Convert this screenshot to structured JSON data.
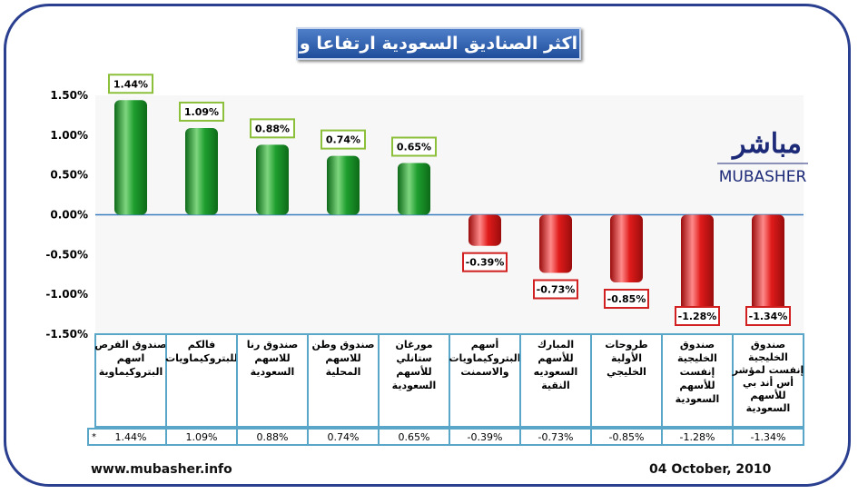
{
  "title": "اكثر الصناديق السعودية ارتفاعا و تراجعا",
  "logo": {
    "arabic": "مباشر",
    "latin": "MUBASHER"
  },
  "footer": {
    "website": "www.mubasher.info",
    "date": "04 October, 2010"
  },
  "chart_data": {
    "type": "bar",
    "title": "اكثر الصناديق السعودية ارتفاعا و تراجعا",
    "categories": [
      "صندوق الفرص اسهم البتروكيماوية",
      "فالكم للبتروكيماويات",
      "صندوق رنا للاسهم السعودية",
      "صندوق وطن للاسهم المحلية",
      "مورغان ستانلي للأسهم السعودية",
      "أسهم البتروكيماويات والاسمنت",
      "المبارك للأسهم السعوديه النقية",
      "طروحات الأولية الخليجي",
      "صندوق الخليجية إنفست للأسهم السعودية",
      "صندوق الخليجية إنفست لمؤشر أس أند بي للأسهم السعودية"
    ],
    "values": [
      1.44,
      1.09,
      0.88,
      0.74,
      0.65,
      -0.39,
      -0.73,
      -0.85,
      -1.28,
      -1.34
    ],
    "value_labels": [
      "1.44%",
      "1.09%",
      "0.88%",
      "0.74%",
      "0.65%",
      "-0.39%",
      "-0.73%",
      "-0.85%",
      "-1.28%",
      "-1.34%"
    ],
    "ylim": [
      -1.5,
      1.5
    ],
    "yticks": [
      "1.50%",
      "1.00%",
      "0.50%",
      "0.00%",
      "-0.50%",
      "-1.00%",
      "-1.50%"
    ],
    "ytick_values": [
      1.5,
      1.0,
      0.5,
      0,
      -0.5,
      -1.0,
      -1.5
    ],
    "table_marker": "*",
    "colors": {
      "positive": "#1e9e2e",
      "negative": "#e01b1b",
      "axis": "#3a7fc0",
      "frame": "#2a3f8f"
    },
    "grid": false
  }
}
